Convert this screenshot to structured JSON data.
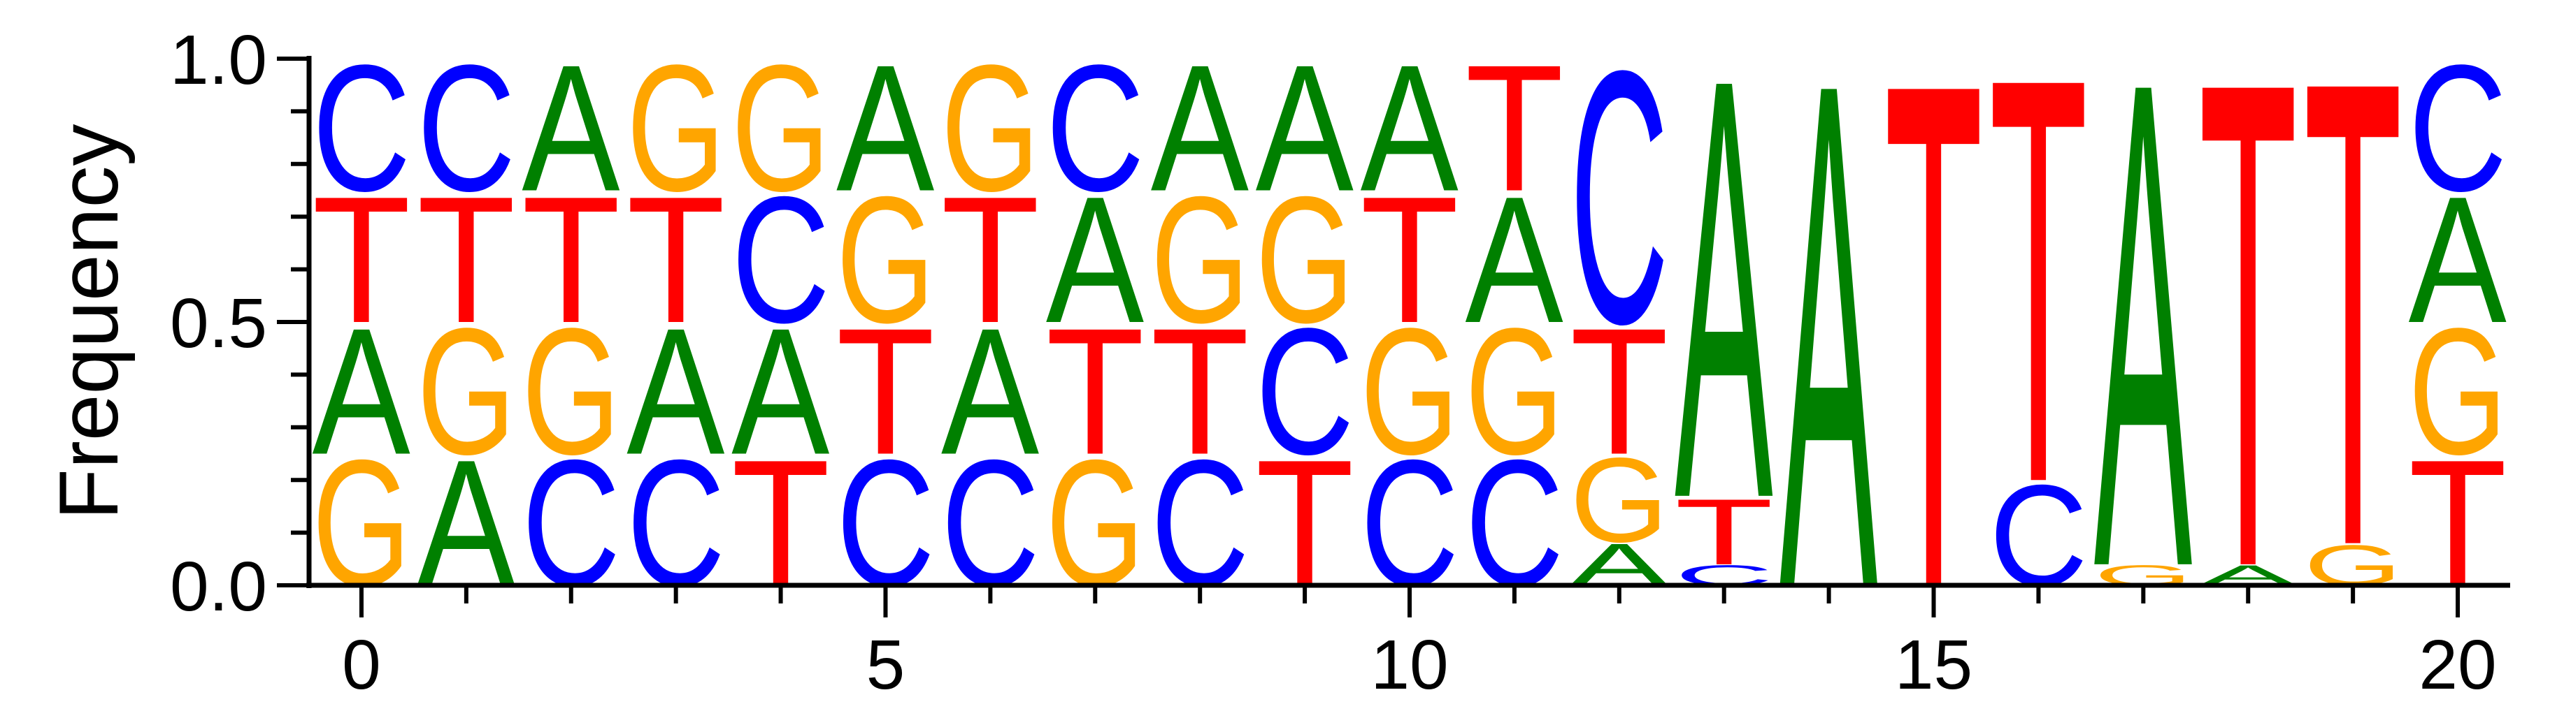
{
  "chart_data": {
    "type": "sequence-logo",
    "ylabel": "Frequency",
    "xlabel": "",
    "ylim": [
      0,
      1
    ],
    "xlim": [
      -0.5,
      20.5
    ],
    "yticks": [
      "0.0",
      "0.5",
      "1.0"
    ],
    "ytick_values": [
      0,
      0.5,
      1
    ],
    "xticks": [
      "0",
      "5",
      "10",
      "15",
      "20"
    ],
    "xtick_values": [
      0,
      5,
      10,
      15,
      20
    ],
    "colors": {
      "A": "#008000",
      "C": "#0000ff",
      "G": "#ffa500",
      "T": "#ff0000"
    },
    "positions": [
      {
        "x": 0,
        "stack": [
          [
            "G",
            0.25
          ],
          [
            "A",
            0.25
          ],
          [
            "T",
            0.25
          ],
          [
            "C",
            0.25
          ]
        ]
      },
      {
        "x": 1,
        "stack": [
          [
            "A",
            0.25
          ],
          [
            "G",
            0.25
          ],
          [
            "T",
            0.25
          ],
          [
            "C",
            0.25
          ]
        ]
      },
      {
        "x": 2,
        "stack": [
          [
            "C",
            0.25
          ],
          [
            "G",
            0.25
          ],
          [
            "T",
            0.25
          ],
          [
            "A",
            0.25
          ]
        ]
      },
      {
        "x": 3,
        "stack": [
          [
            "C",
            0.25
          ],
          [
            "A",
            0.25
          ],
          [
            "T",
            0.25
          ],
          [
            "G",
            0.25
          ]
        ]
      },
      {
        "x": 4,
        "stack": [
          [
            "T",
            0.25
          ],
          [
            "A",
            0.25
          ],
          [
            "C",
            0.25
          ],
          [
            "G",
            0.25
          ]
        ]
      },
      {
        "x": 5,
        "stack": [
          [
            "C",
            0.25
          ],
          [
            "T",
            0.25
          ],
          [
            "G",
            0.25
          ],
          [
            "A",
            0.25
          ]
        ]
      },
      {
        "x": 6,
        "stack": [
          [
            "C",
            0.25
          ],
          [
            "A",
            0.25
          ],
          [
            "T",
            0.25
          ],
          [
            "G",
            0.25
          ]
        ]
      },
      {
        "x": 7,
        "stack": [
          [
            "G",
            0.25
          ],
          [
            "T",
            0.25
          ],
          [
            "A",
            0.25
          ],
          [
            "C",
            0.25
          ]
        ]
      },
      {
        "x": 8,
        "stack": [
          [
            "C",
            0.25
          ],
          [
            "T",
            0.25
          ],
          [
            "G",
            0.25
          ],
          [
            "A",
            0.25
          ]
        ]
      },
      {
        "x": 9,
        "stack": [
          [
            "T",
            0.25
          ],
          [
            "C",
            0.25
          ],
          [
            "G",
            0.25
          ],
          [
            "A",
            0.25
          ]
        ]
      },
      {
        "x": 10,
        "stack": [
          [
            "C",
            0.25
          ],
          [
            "G",
            0.25
          ],
          [
            "T",
            0.25
          ],
          [
            "A",
            0.25
          ]
        ]
      },
      {
        "x": 11,
        "stack": [
          [
            "C",
            0.25
          ],
          [
            "G",
            0.25
          ],
          [
            "A",
            0.25
          ],
          [
            "T",
            0.25
          ]
        ]
      },
      {
        "x": 12,
        "stack": [
          [
            "A",
            0.083
          ],
          [
            "G",
            0.167
          ],
          [
            "T",
            0.25
          ],
          [
            "C",
            0.5
          ]
        ]
      },
      {
        "x": 13,
        "stack": [
          [
            "C",
            0.04
          ],
          [
            "T",
            0.13
          ],
          [
            "A",
            0.83
          ]
        ]
      },
      {
        "x": 14,
        "stack": [
          [
            "A",
            1.0
          ]
        ]
      },
      {
        "x": 15,
        "stack": [
          [
            "T",
            1.0
          ]
        ]
      },
      {
        "x": 16,
        "stack": [
          [
            "C",
            0.2
          ],
          [
            "T",
            0.8
          ]
        ]
      },
      {
        "x": 17,
        "stack": [
          [
            "G",
            0.04
          ],
          [
            "A",
            0.96
          ]
        ]
      },
      {
        "x": 18,
        "stack": [
          [
            "A",
            0.04
          ],
          [
            "T",
            0.96
          ]
        ]
      },
      {
        "x": 19,
        "stack": [
          [
            "G",
            0.08
          ],
          [
            "T",
            0.92
          ]
        ]
      },
      {
        "x": 20,
        "stack": [
          [
            "T",
            0.25
          ],
          [
            "G",
            0.25
          ],
          [
            "A",
            0.25
          ],
          [
            "C",
            0.25
          ]
        ]
      }
    ]
  }
}
